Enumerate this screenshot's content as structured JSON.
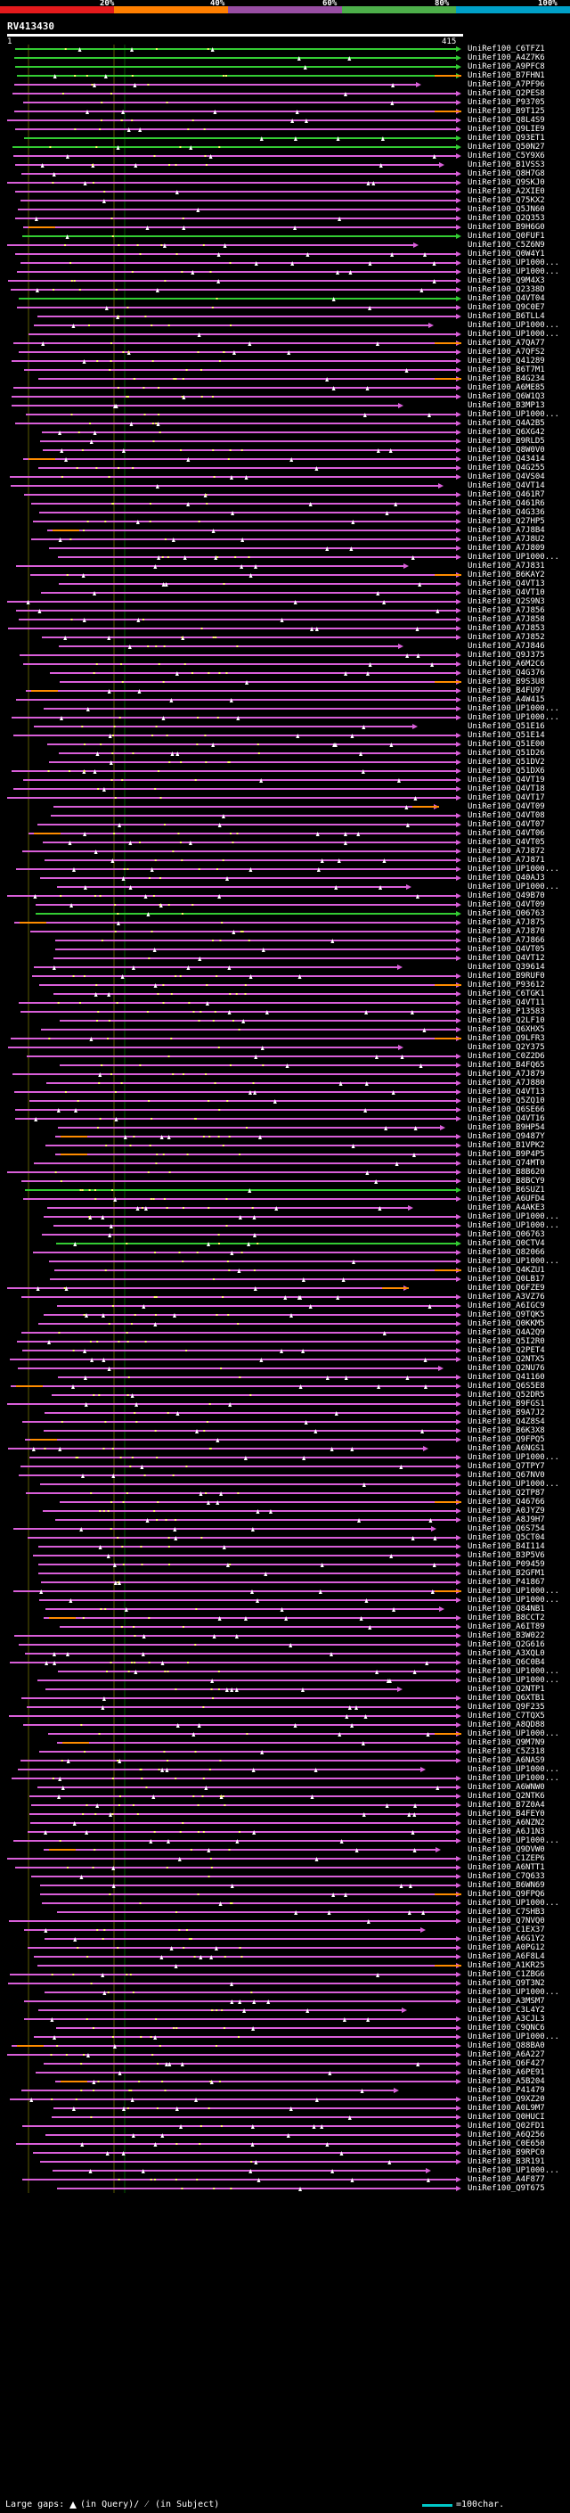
{
  "scale": {
    "labels": [
      "20%",
      "40%",
      "60%",
      "80%",
      "100%"
    ],
    "colors": [
      "#e41a1c",
      "#ff7f00",
      "#984ea3",
      "#4daf4a",
      "#00a0c8"
    ]
  },
  "query": {
    "name": "RV413430",
    "start": "1",
    "end": "415"
  },
  "hit_colors": {
    "purple": "#d95fd9",
    "green": "#33cc33",
    "orange": "#ff8c00",
    "dot": "#ffff66"
  },
  "hits": [
    "UniRef100_C6TFZ1",
    "UniRef100_A4Z7K6",
    "UniRef100_A9PFC8",
    "UniRef100_B7FHN1",
    "UniRef100_A7PF96",
    "UniRef100_Q2PES8",
    "UniRef100_P93705",
    "UniRef100_B9T125",
    "UniRef100_Q8L4S9",
    "UniRef100_Q9LIE9",
    "UniRef100_Q93ET1",
    "UniRef100_Q50N27",
    "UniRef100_C5Y9X6",
    "UniRef100_B1VSS3",
    "UniRef100_Q8H7G8",
    "UniRef100_Q9SKJ0",
    "UniRef100_A2XIE0",
    "UniRef100_Q75KX2",
    "UniRef100_Q5JN60",
    "UniRef100_Q2Q353",
    "UniRef100_B9H6G0",
    "UniRef100_Q0FUF1",
    "UniRef100_C5Z6N9",
    "UniRef100_Q0W4Y1",
    "UniRef100_UP1000...",
    "UniRef100_UP1000...",
    "UniRef100_Q9M4X3",
    "UniRef100_Q2338D",
    "UniRef100_Q4VT04",
    "UniRef100_Q9C0E7",
    "UniRef100_B6TLL4",
    "UniRef100_UP1000...",
    "UniRef100_UP1000...",
    "UniRef100_A7QA77",
    "UniRef100_A7QFS2",
    "UniRef100_Q41289",
    "UniRef100_B6T7M1",
    "UniRef100_B4G234",
    "UniRef100_A6ME85",
    "UniRef100_Q6W1Q3",
    "UniRef100_B3MP13",
    "UniRef100_UP1000...",
    "UniRef100_Q4A2B5",
    "UniRef100_Q6XG42",
    "UniRef100_B9RLD5",
    "UniRef100_Q8W0V0",
    "UniRef100_Q43414",
    "UniRef100_Q4G255",
    "UniRef100_Q4VS04",
    "UniRef100_Q4VT14",
    "UniRef100_Q461R7",
    "UniRef100_Q461R6",
    "UniRef100_Q4G336",
    "UniRef100_Q27HP5",
    "UniRef100_A7J8B4",
    "UniRef100_A7J8U2",
    "UniRef100_A7J809",
    "UniRef100_UP1000...",
    "UniRef100_A7J831",
    "UniRef100_B6KAY2",
    "UniRef100_Q4VT13",
    "UniRef100_Q4VT10",
    "UniRef100_Q2S9N3",
    "UniRef100_A7J856",
    "UniRef100_A7J858",
    "UniRef100_A7J853",
    "UniRef100_A7J852",
    "UniRef100_A7J846",
    "UniRef100_Q9J375",
    "UniRef100_A6M2C6",
    "UniRef100_Q4G376",
    "UniRef100_B9S3U8",
    "UniRef100_B4FU97",
    "UniRef100_A4W415",
    "UniRef100_UP1000...",
    "UniRef100_UP1000...",
    "UniRef100_Q51E16",
    "UniRef100_Q51E14",
    "UniRef100_Q51E00",
    "UniRef100_Q51D26",
    "UniRef100_Q51DV2",
    "UniRef100_Q51DX6",
    "UniRef100_Q4VT19",
    "UniRef100_Q4VT18",
    "UniRef100_Q4VT17",
    "UniRef100_Q4VT09",
    "UniRef100_Q4VT08",
    "UniRef100_Q4VT07",
    "UniRef100_Q4VT06",
    "UniRef100_Q4VT05",
    "UniRef100_A7J872",
    "UniRef100_A7J871",
    "UniRef100_UP1000...",
    "UniRef100_Q40AJ3",
    "UniRef100_UP1000...",
    "UniRef100_Q49B70",
    "UniRef100_Q4VT09",
    "UniRef100_Q06763",
    "UniRef100_A7J875",
    "UniRef100_A7J870",
    "UniRef100_A7J866",
    "UniRef100_Q4VT05",
    "UniRef100_Q4VT12",
    "UniRef100_Q39614",
    "UniRef100_B9RUF0",
    "UniRef100_P93612",
    "UniRef100_C6TGK1",
    "UniRef100_Q4VT11",
    "UniRef100_P13583",
    "UniRef100_Q2LF10",
    "UniRef100_Q6XHX5",
    "UniRef100_Q9LFR3",
    "UniRef100_Q2Y375",
    "UniRef100_C0Z2D6",
    "UniRef100_B4FQ65",
    "UniRef100_A7J879",
    "UniRef100_A7J880",
    "UniRef100_Q4VT13",
    "UniRef100_Q5ZQ10",
    "UniRef100_Q6SE66",
    "UniRef100_Q4VT16",
    "UniRef100_B9HP54",
    "UniRef100_Q9487Y",
    "UniRef100_B1VPK2",
    "UniRef100_B9P4P5",
    "UniRef100_Q74MT0",
    "UniRef100_B8B620",
    "UniRef100_B8BCY9",
    "UniRef100_B6SUZ1",
    "UniRef100_A6UFD4",
    "UniRef100_A4AKE3",
    "UniRef100_UP1000...",
    "UniRef100_UP1000...",
    "UniRef100_Q06763",
    "UniRef100_Q0CTV4",
    "UniRef100_Q82066",
    "UniRef100_UP1000...",
    "UniRef100_Q4KZU1",
    "UniRef100_Q0LB17",
    "UniRef100_Q6FZE9",
    "UniRef100_A3VZ76",
    "UniRef100_A6IGC9",
    "UniRef100_Q9TQK5",
    "UniRef100_Q0KKM5",
    "UniRef100_Q4A2Q9",
    "UniRef100_Q5I2R0",
    "UniRef100_Q2PET4",
    "UniRef100_Q2NTX5",
    "UniRef100_Q2NU76",
    "UniRef100_Q41160",
    "UniRef100_Q6S5E8",
    "UniRef100_Q52DR5",
    "UniRef100_B9FGS1",
    "UniRef100_B9A7J2",
    "UniRef100_Q4Z8S4",
    "UniRef100_B6K3X8",
    "UniRef100_Q9FPQ5",
    "UniRef100_A6NGS1",
    "UniRef100_UP1000...",
    "UniRef100_Q7TPY7",
    "UniRef100_Q67NV0",
    "UniRef100_UP1000...",
    "UniRef100_Q2TP87",
    "UniRef100_Q46766",
    "UniRef100_A0JYZ9",
    "UniRef100_A8J9H7",
    "UniRef100_Q6S754",
    "UniRef100_Q5CT04",
    "UniRef100_B4I114",
    "UniRef100_B3P5V6",
    "UniRef100_P09459",
    "UniRef100_B2GFM1",
    "UniRef100_P41867",
    "UniRef100_UP1000...",
    "UniRef100_UP1000...",
    "UniRef100_Q84NB1",
    "UniRef100_B8CCT2",
    "UniRef100_A6IT89",
    "UniRef100_B3W022",
    "UniRef100_Q2G616",
    "UniRef100_A3XQL0",
    "UniRef100_Q6C0B4",
    "UniRef100_UP1000...",
    "UniRef100_UP1000...",
    "UniRef100_Q2NTP1",
    "UniRef100_Q6XTB1",
    "UniRef100_Q9F235",
    "UniRef100_C7TQX5",
    "UniRef100_A8QD88",
    "UniRef100_UP1000...",
    "UniRef100_Q9M7N9",
    "UniRef100_C5Z318",
    "UniRef100_A6NAS9",
    "UniRef100_UP1000...",
    "UniRef100_UP1000...",
    "UniRef100_A6WNW0",
    "UniRef100_Q2NTK6",
    "UniRef100_B7Z0A4",
    "UniRef100_B4FEY0",
    "UniRef100_A6NZN2",
    "UniRef100_A6J1N3",
    "UniRef100_UP1000...",
    "UniRef100_Q9DVW0",
    "UniRef100_C1ZEP6",
    "UniRef100_A6NTT1",
    "UniRef100_C7Q633",
    "UniRef100_B6WN69",
    "UniRef100_Q9FPQ6",
    "UniRef100_UP1000...",
    "UniRef100_C7SHB3",
    "UniRef100_Q7NVQ0",
    "UniRef100_C1EX37",
    "UniRef100_A6G1Y2",
    "UniRef100_A0PG12",
    "UniRef100_A6F8L4",
    "UniRef100_A1KR25",
    "UniRef100_C1ZBG6",
    "UniRef100_Q9T3N2",
    "UniRef100_UP1000...",
    "UniRef100_A3MSM7",
    "UniRef100_C3L4Y2",
    "UniRef100_A3CJL3",
    "UniRef100_C9QNC6",
    "UniRef100_UP1000...",
    "UniRef100_Q88BA0",
    "UniRef100_A6A227",
    "UniRef100_Q6F427",
    "UniRef100_A6PE91",
    "UniRef100_A5B204",
    "UniRef100_P41479",
    "UniRef100_Q9XZ20",
    "UniRef100_A0L9M7",
    "UniRef100_Q0HUCI",
    "UniRef100_Q02FD1",
    "UniRef100_A6Q256",
    "UniRef100_C0E650",
    "UniRef100_B9RPC0",
    "UniRef100_B3R191",
    "UniRef100_UP1000...",
    "UniRef100_A4F877",
    "UniRef100_Q9T675"
  ],
  "footer": {
    "gaps_label": "Large gaps:",
    "query_label": "(in Query)/",
    "subject_label": "(in Subject)",
    "scale_label": "=100char."
  }
}
